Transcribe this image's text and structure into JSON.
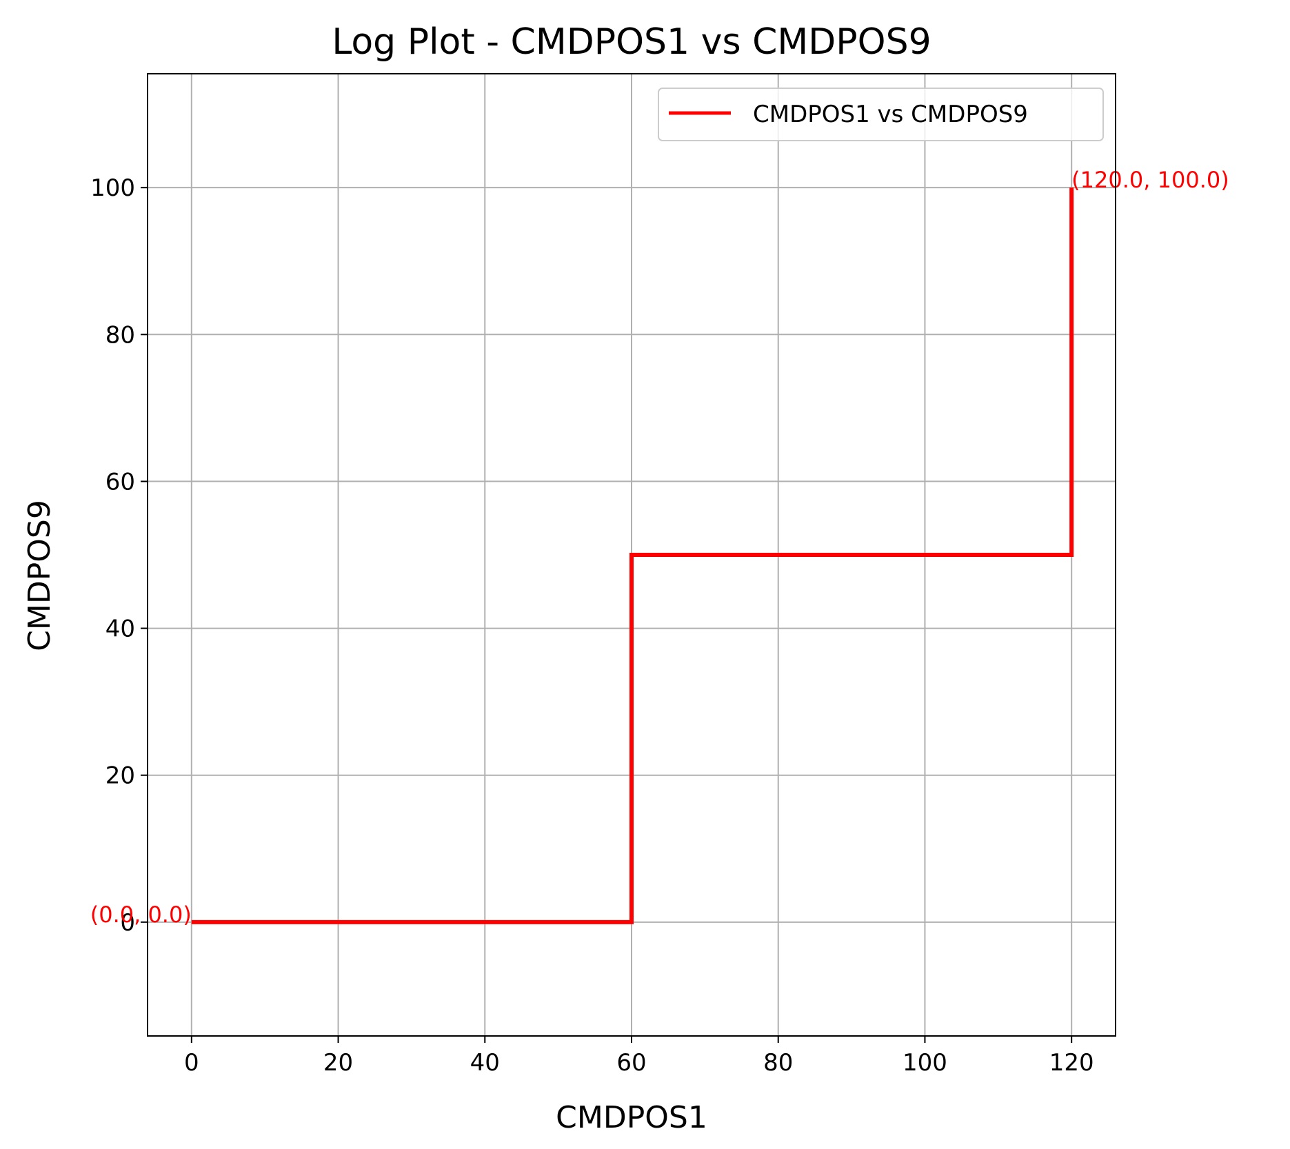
{
  "chart_data": {
    "type": "line",
    "title": "Log Plot - CMDPOS1 vs CMDPOS9",
    "xlabel": "CMDPOS1",
    "ylabel": "CMDPOS9",
    "xlim": [
      -6,
      126
    ],
    "ylim": [
      -15.5,
      115.5
    ],
    "xticks": [
      0,
      20,
      40,
      60,
      80,
      100,
      120
    ],
    "yticks": [
      0,
      20,
      40,
      60,
      80,
      100
    ],
    "grid": true,
    "legend_position": "top-right",
    "series": [
      {
        "name": "CMDPOS1 vs CMDPOS9",
        "color": "#ff0000",
        "x": [
          0,
          60,
          60,
          120,
          120
        ],
        "y": [
          0,
          0,
          50,
          50,
          100
        ]
      }
    ],
    "annotations": [
      {
        "text": "(0.0, 0.0)",
        "x": 0,
        "y": 0,
        "anchor": "end"
      },
      {
        "text": "(120.0, 100.0)",
        "x": 120,
        "y": 100,
        "anchor": "start"
      }
    ]
  }
}
